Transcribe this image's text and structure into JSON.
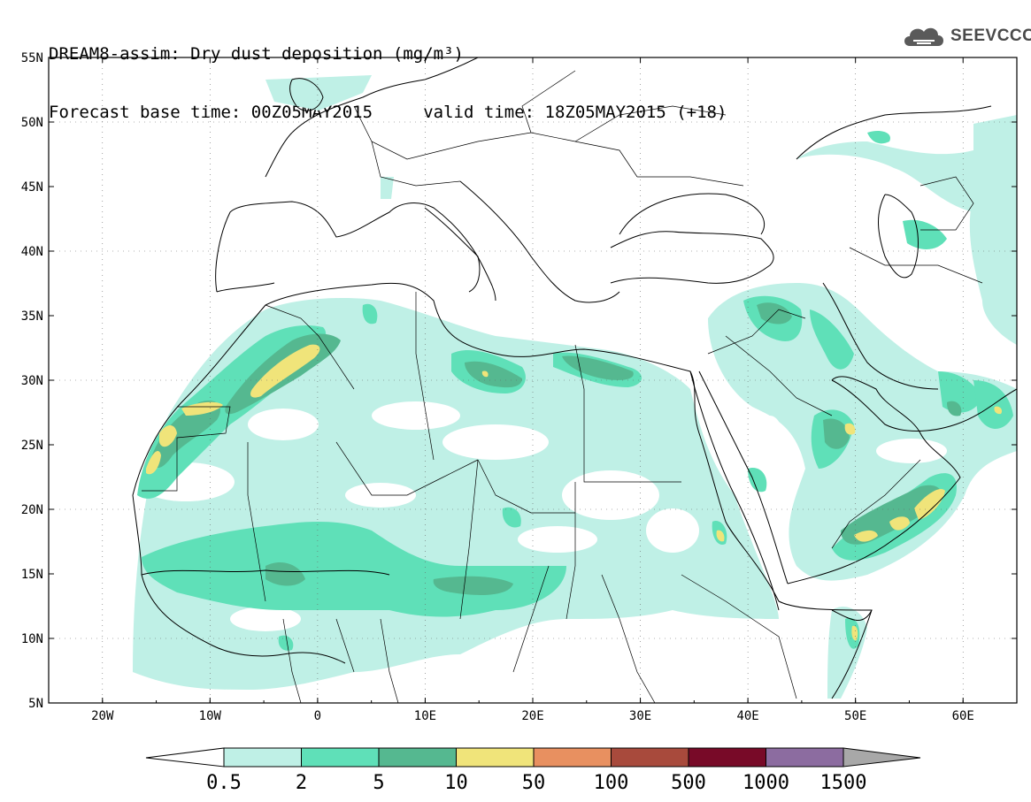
{
  "title": {
    "line1": "DREAM8-assim: Dry dust deposition (mg/m³)",
    "line2": "Forecast base time: 00Z05MAY2015     valid time: 18Z05MAY2015 (+18)"
  },
  "logo": {
    "text": "SEEVCCC",
    "icon": "cloud-icon"
  },
  "map": {
    "lat_labels": [
      "55N",
      "50N",
      "45N",
      "40N",
      "35N",
      "30N",
      "25N",
      "20N",
      "15N",
      "10N",
      "5N"
    ],
    "lon_labels": [
      "20W",
      "10W",
      "0",
      "10E",
      "20E",
      "30E",
      "40E",
      "50E",
      "60E"
    ],
    "lon_range": [
      -25,
      65
    ],
    "lat_range": [
      5,
      55
    ],
    "grid": "dotted"
  },
  "colorbar": {
    "labels": [
      "0.5",
      "2",
      "5",
      "10",
      "50",
      "100",
      "500",
      "1000",
      "1500"
    ],
    "colors": [
      "#bff0e6",
      "#5fe0b8",
      "#55b890",
      "#f0e47a",
      "#e89060",
      "#a84a3c",
      "#780a28",
      "#8c6ca0",
      "#a8a8a8"
    ]
  }
}
